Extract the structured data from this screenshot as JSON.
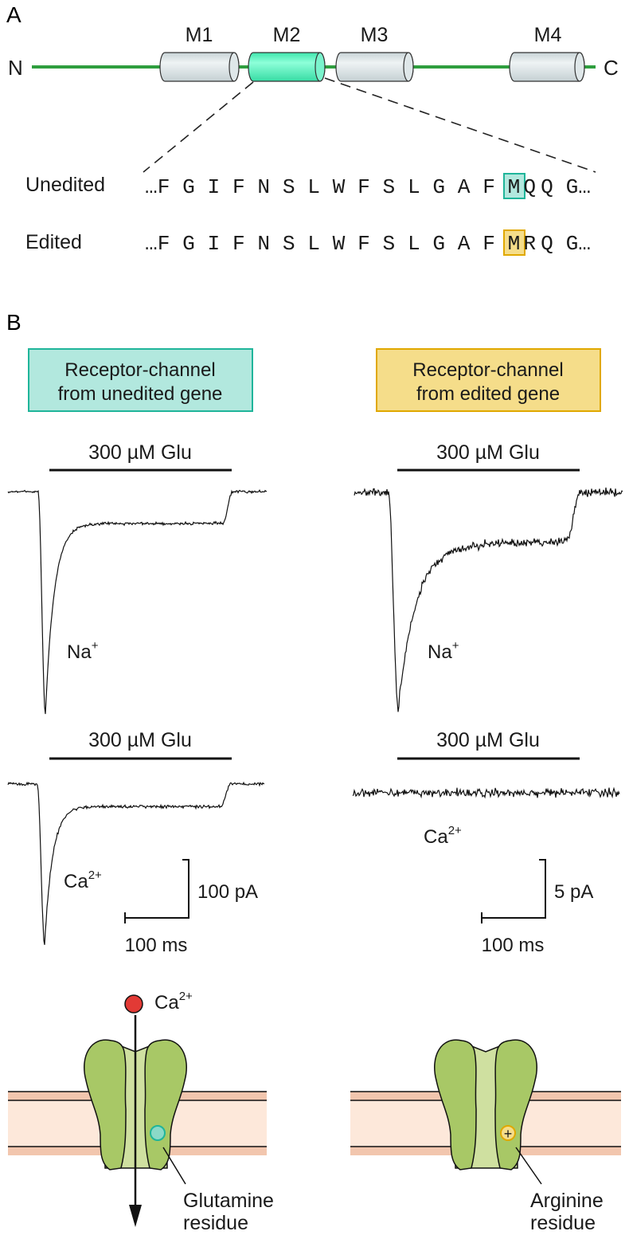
{
  "panel_a": {
    "letter": "A",
    "n_terminus": "N",
    "c_terminus": "C",
    "segments": [
      "M1",
      "M2",
      "M3",
      "M4"
    ],
    "unedited_label": "Unedited",
    "edited_label": "Edited",
    "sequence_prefix": "…F G I F N S L W F S L G A F M",
    "unedited_residue": "Q",
    "edited_residue": "R",
    "sequence_suffix": "Q G…"
  },
  "panel_b": {
    "letter": "B",
    "unedited_box": [
      "Receptor-channel",
      "from unedited gene"
    ],
    "edited_box": [
      "Receptor-channel",
      "from edited gene"
    ],
    "glu_label": "300 µM Glu",
    "na_ion": "Na",
    "na_charge": "+",
    "ca_ion": "Ca",
    "ca_charge": "2+",
    "left_scale_current": "100 pA",
    "right_scale_current": "5 pA",
    "scale_time": "100 ms",
    "left_residue_label": [
      "Glutamine",
      "residue"
    ],
    "right_residue_label": [
      "Arginine",
      "residue"
    ],
    "right_residue_symbol": "+"
  },
  "colors": {
    "backbone_green": "#2e9e3e",
    "m2_teal": "#5af5c0",
    "segment_gray": "#d8e1e3",
    "teal_box": "#b2e8de",
    "yellow_box": "#f5dd8a",
    "membrane_pink": "#f2c6ae",
    "channel_green": "#a8c866",
    "calcium_red": "#e23a35"
  }
}
